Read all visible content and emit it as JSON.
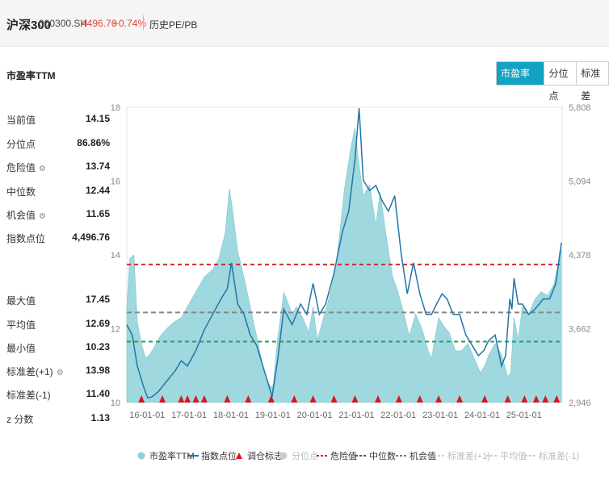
{
  "header": {
    "title": "沪深300",
    "code": "000300.SH",
    "price": "4496.76",
    "change": "+0.74%",
    "pe_link": "历史PE/PB"
  },
  "card": {
    "title": "市盈率TTM"
  },
  "tabs": [
    {
      "label": "市盈率TTM",
      "active": true
    },
    {
      "label": "分位点",
      "active": false
    },
    {
      "label": "标准差",
      "active": false
    }
  ],
  "stats_top": [
    {
      "label": "当前值",
      "value": "14.15",
      "gear": false
    },
    {
      "label": "分位点",
      "value": "86.86%",
      "gear": false
    },
    {
      "label": "危险值",
      "value": "13.74",
      "gear": true
    },
    {
      "label": "中位数",
      "value": "12.44",
      "gear": false
    },
    {
      "label": "机会值",
      "value": "11.65",
      "gear": true
    },
    {
      "label": "指数点位",
      "value": "4,496.76",
      "gear": false
    }
  ],
  "stats_bottom": [
    {
      "label": "最大值",
      "value": "17.45",
      "gear": false
    },
    {
      "label": "平均值",
      "value": "12.69",
      "gear": false
    },
    {
      "label": "最小值",
      "value": "10.23",
      "gear": false
    },
    {
      "label": "标准差(+1)",
      "value": "13.98",
      "gear": true
    },
    {
      "label": "标准差(-1)",
      "value": "11.40",
      "gear": false
    },
    {
      "label": "z 分数",
      "value": "1.13",
      "gear": false
    }
  ],
  "chart_data": {
    "type": "area",
    "left_axis": {
      "ylim": [
        10,
        18
      ],
      "ticks": [
        "10",
        "12",
        "14",
        "16",
        "18"
      ]
    },
    "right_axis": {
      "ylim": [
        2946,
        5808
      ],
      "ticks": [
        "2,946",
        "3,662",
        "4,378",
        "5,094",
        "5,808"
      ]
    },
    "x_ticks": [
      "16-01-01",
      "17-01-01",
      "18-01-01",
      "19-01-01",
      "20-01-01",
      "21-01-01",
      "22-01-01",
      "23-01-01",
      "24-01-01",
      "25-01-01"
    ],
    "x_range": [
      2015.55,
      2025.95
    ],
    "pe_series": {
      "name": "市盈率TTM",
      "color": "#8ed1d8",
      "x": [
        2015.55,
        2015.62,
        2015.72,
        2015.8,
        2015.9,
        2016.0,
        2016.1,
        2016.2,
        2016.35,
        2016.5,
        2016.7,
        2016.85,
        2017.0,
        2017.2,
        2017.4,
        2017.6,
        2017.75,
        2017.9,
        2018.0,
        2018.08,
        2018.2,
        2018.35,
        2018.5,
        2018.65,
        2018.8,
        2018.9,
        2019.0,
        2019.05,
        2019.15,
        2019.3,
        2019.5,
        2019.6,
        2019.75,
        2019.9,
        2020.0,
        2020.1,
        2020.2,
        2020.35,
        2020.5,
        2020.6,
        2020.75,
        2020.9,
        2021.0,
        2021.08,
        2021.2,
        2021.35,
        2021.5,
        2021.6,
        2021.75,
        2021.9,
        2022.0,
        2022.15,
        2022.3,
        2022.45,
        2022.6,
        2022.75,
        2022.83,
        2022.92,
        2023.0,
        2023.1,
        2023.25,
        2023.4,
        2023.55,
        2023.7,
        2023.85,
        2024.0,
        2024.1,
        2024.2,
        2024.35,
        2024.5,
        2024.65,
        2024.72,
        2024.8,
        2024.9,
        2025.0,
        2025.15,
        2025.3,
        2025.45,
        2025.6,
        2025.75,
        2025.85,
        2025.93
      ],
      "y": [
        12.6,
        13.9,
        14.0,
        12.2,
        11.6,
        11.2,
        11.3,
        11.5,
        11.8,
        12.0,
        12.2,
        12.3,
        12.6,
        13.0,
        13.4,
        13.6,
        13.9,
        14.6,
        15.8,
        15.2,
        14.1,
        13.4,
        12.6,
        11.8,
        11.0,
        10.6,
        10.4,
        10.5,
        11.7,
        13.0,
        12.4,
        12.6,
        12.3,
        11.9,
        12.6,
        11.7,
        12.1,
        12.7,
        13.4,
        14.2,
        15.8,
        16.9,
        17.45,
        16.6,
        15.6,
        15.9,
        14.8,
        15.7,
        14.5,
        13.4,
        13.1,
        12.5,
        11.8,
        12.4,
        12.0,
        11.4,
        11.2,
        11.8,
        12.3,
        12.1,
        11.9,
        11.4,
        11.4,
        11.6,
        11.2,
        10.8,
        11.0,
        11.3,
        11.6,
        11.3,
        10.7,
        10.8,
        12.3,
        11.7,
        12.6,
        12.4,
        12.8,
        13.0,
        12.9,
        13.2,
        13.7,
        14.15
      ]
    },
    "index_series": {
      "name": "指数点位",
      "color": "#2176a8",
      "x": [
        2015.55,
        2015.68,
        2015.8,
        2015.95,
        2016.05,
        2016.15,
        2016.3,
        2016.5,
        2016.7,
        2016.85,
        2017.0,
        2017.2,
        2017.4,
        2017.6,
        2017.8,
        2017.95,
        2018.05,
        2018.2,
        2018.35,
        2018.5,
        2018.65,
        2018.8,
        2018.95,
        2019.02,
        2019.15,
        2019.3,
        2019.5,
        2019.7,
        2019.85,
        2020.0,
        2020.15,
        2020.3,
        2020.5,
        2020.7,
        2020.85,
        2021.0,
        2021.1,
        2021.2,
        2021.35,
        2021.5,
        2021.65,
        2021.8,
        2021.95,
        2022.1,
        2022.25,
        2022.4,
        2022.55,
        2022.7,
        2022.83,
        2022.95,
        2023.08,
        2023.2,
        2023.35,
        2023.5,
        2023.65,
        2023.8,
        2023.95,
        2024.08,
        2024.2,
        2024.35,
        2024.5,
        2024.6,
        2024.7,
        2024.75,
        2024.8,
        2024.9,
        2025.0,
        2025.15,
        2025.3,
        2025.5,
        2025.65,
        2025.8,
        2025.93
      ],
      "y": [
        3700,
        3600,
        3300,
        3100,
        2990,
        3000,
        3050,
        3150,
        3250,
        3350,
        3300,
        3450,
        3650,
        3800,
        3950,
        4050,
        4300,
        3900,
        3800,
        3600,
        3500,
        3300,
        3100,
        3000,
        3350,
        3850,
        3700,
        3900,
        3800,
        4100,
        3800,
        3900,
        4200,
        4600,
        4800,
        5300,
        5800,
        5100,
        5000,
        5050,
        4900,
        4800,
        4950,
        4400,
        4000,
        4300,
        4000,
        3800,
        3800,
        3900,
        4000,
        3950,
        3800,
        3800,
        3600,
        3500,
        3400,
        3450,
        3550,
        3600,
        3300,
        3400,
        3950,
        3850,
        4150,
        3900,
        3900,
        3800,
        3850,
        3950,
        3950,
        4100,
        4496.76
      ]
    },
    "lines": [
      {
        "name": "危险值",
        "value": 13.74,
        "color": "#cc2a2a",
        "dash": "5,4",
        "label_left": "14"
      },
      {
        "name": "中位数",
        "value": 12.44,
        "color": "#888888",
        "dash": "6,4"
      },
      {
        "name": "机会值",
        "value": 11.65,
        "color": "#2aa05a",
        "dash": "5,4"
      }
    ],
    "markers": {
      "name": "调仓标志",
      "color": "#e0121a",
      "x": [
        2015.9,
        2016.4,
        2016.85,
        2017.0,
        2017.2,
        2017.4,
        2017.95,
        2018.45,
        2019.0,
        2019.55,
        2020.0,
        2020.5,
        2021.0,
        2021.55,
        2022.05,
        2022.55,
        2023.0,
        2023.5,
        2024.1,
        2024.65,
        2025.05,
        2025.33,
        2025.55,
        2025.82
      ]
    }
  },
  "legend": [
    {
      "label": "市盈率TTM",
      "kind": "circle",
      "color": "#8ed1d8",
      "dim": false
    },
    {
      "label": "指数点位",
      "kind": "line",
      "color": "#2176a8",
      "dim": false
    },
    {
      "label": "调仓标志",
      "kind": "triangle",
      "color": "#e0121a",
      "dim": false
    },
    {
      "label": "分位点",
      "kind": "circle",
      "color": "#cccccc",
      "dim": true
    },
    {
      "label": "危险值",
      "kind": "dash",
      "color": "#cc2a2a",
      "dim": false
    },
    {
      "label": "中位数",
      "kind": "dash",
      "color": "#555555",
      "dim": false
    },
    {
      "label": "机会值",
      "kind": "dash",
      "color": "#2aa05a",
      "dim": false
    },
    {
      "label": "标准差(+1)",
      "kind": "dash",
      "color": "#cccccc",
      "dim": true
    },
    {
      "label": "平均值",
      "kind": "dash",
      "color": "#cccccc",
      "dim": true
    },
    {
      "label": "标准差(-1)",
      "kind": "dash",
      "color": "#cccccc",
      "dim": true
    }
  ]
}
